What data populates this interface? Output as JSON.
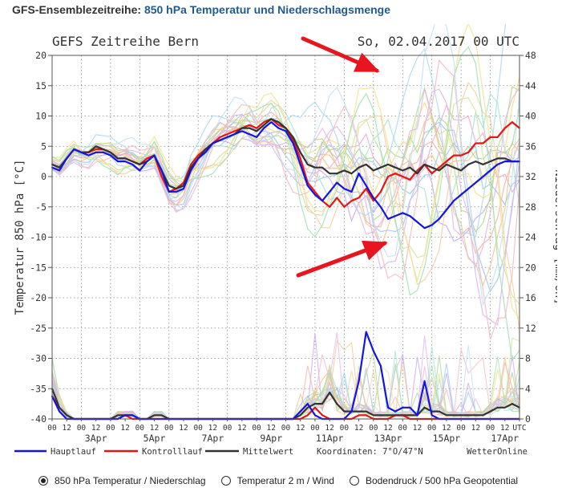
{
  "header": {
    "title_bold": "GFS-Ensemblezeitreihe:",
    "title_sub": "850 hPa Temperatur und Niederschlagsmenge"
  },
  "chart_meta": {
    "title_left": "GEFS Zeitreihe Bern",
    "title_right": "So, 02.04.2017  00 UTC",
    "hour_labels": [
      "00",
      "12",
      "00",
      "12",
      "00",
      "12",
      "00",
      "12",
      "00",
      "12",
      "00",
      "12",
      "00",
      "12",
      "00",
      "12",
      "00",
      "12",
      "00",
      "12",
      "00",
      "12",
      "00",
      "12",
      "00",
      "12",
      "00",
      "12",
      "00",
      "12",
      "00",
      "12"
    ],
    "last_hour_label": "UTC",
    "date_labels": [
      "3Apr",
      "5Apr",
      "7Apr",
      "9Apr",
      "11Apr",
      "13Apr",
      "15Apr",
      "17Apr"
    ],
    "legend": {
      "hauptlauf": "Hauptlauf",
      "kontrolllauf": "Kontrolllauf",
      "mittelwert": "Mittelwert",
      "coordinates": "Koordinaten: 7°O/47°N",
      "brand": "WetterOnline"
    },
    "colors": {
      "hauptlauf": "#1515e0",
      "kontrolllauf": "#e81515",
      "mittelwert": "#333333",
      "arrow": "#e8141e",
      "grid": "#888888"
    }
  },
  "chart_data": {
    "type": "line",
    "title": "GEFS Zeitreihe Bern",
    "x_unit": "hours since 02.04.2017 00 UTC (6-hourly)",
    "x": [
      0,
      6,
      12,
      18,
      24,
      30,
      36,
      42,
      48,
      54,
      60,
      66,
      72,
      78,
      84,
      90,
      96,
      102,
      108,
      114,
      120,
      126,
      132,
      138,
      144,
      150,
      156,
      162,
      168,
      174,
      180,
      186,
      192,
      198,
      204,
      210,
      216,
      222,
      228,
      234,
      240,
      246,
      252,
      258,
      264,
      270,
      276,
      282,
      288,
      294,
      300,
      306,
      312,
      318,
      324,
      330,
      336,
      342,
      348,
      354,
      360,
      366,
      372,
      378,
      384
    ],
    "y_left": {
      "label": "Temperatur 850 hPa [°C]",
      "ylim": [
        -40,
        20
      ],
      "ticks": [
        20,
        15,
        10,
        5,
        0,
        -5,
        -10,
        -15,
        -20,
        -25,
        -30,
        -35,
        -40
      ]
    },
    "y_right": {
      "label": "Niederschlag [mm/6h]",
      "ylim": [
        0,
        48
      ],
      "ticks": [
        48,
        44,
        40,
        36,
        32,
        28,
        24,
        20,
        16,
        12,
        8,
        4,
        0
      ]
    },
    "series": [
      {
        "name": "Hauptlauf",
        "role": "temperature",
        "values": [
          1.5,
          1.0,
          3.0,
          4.5,
          4.0,
          3.5,
          4.0,
          4.0,
          3.5,
          2.5,
          2.5,
          2.0,
          1.0,
          2.5,
          3.5,
          1.0,
          -2.5,
          -2.5,
          -2.0,
          1.0,
          3.0,
          4.0,
          5.5,
          6.0,
          6.5,
          7.0,
          7.5,
          7.0,
          6.5,
          8.0,
          9.0,
          8.0,
          7.5,
          5.5,
          2.0,
          -1.5,
          -3.0,
          -4.0,
          -2.5,
          -1.0,
          -2.0,
          -2.5,
          0.5,
          -1.5,
          -3.5,
          -5.0,
          -7.0,
          -6.5,
          -6.0,
          -6.5,
          -7.5,
          -8.5,
          -8.0,
          -7.0,
          -5.5,
          -4.0,
          -3.0,
          -2.0,
          -1.0,
          0.0,
          1.0,
          2.0,
          2.5,
          2.5,
          2.5
        ]
      },
      {
        "name": "Kontrolllauf",
        "role": "temperature",
        "values": [
          2.0,
          1.5,
          3.0,
          4.5,
          4.0,
          4.0,
          4.5,
          4.5,
          4.0,
          3.0,
          3.0,
          2.5,
          2.0,
          3.0,
          3.5,
          0.0,
          -2.5,
          -2.0,
          -1.0,
          2.0,
          3.5,
          4.5,
          5.5,
          6.5,
          7.0,
          7.5,
          8.0,
          8.5,
          8.0,
          9.0,
          9.5,
          8.5,
          8.0,
          6.0,
          3.0,
          -1.0,
          -2.5,
          -4.0,
          -5.0,
          -3.5,
          -5.0,
          -4.0,
          -3.5,
          -2.0,
          -4.0,
          -2.5,
          0.0,
          0.5,
          0.0,
          -0.5,
          1.0,
          2.0,
          0.5,
          1.5,
          2.5,
          3.5,
          3.5,
          4.0,
          5.5,
          5.5,
          6.5,
          6.5,
          8.0,
          9.0,
          8.0
        ]
      },
      {
        "name": "Mittelwert",
        "role": "temperature",
        "values": [
          2.0,
          1.5,
          3.0,
          4.5,
          4.0,
          4.0,
          5.0,
          4.5,
          4.0,
          3.0,
          3.0,
          2.5,
          2.0,
          2.5,
          3.5,
          1.0,
          -1.5,
          -2.0,
          -1.5,
          1.5,
          3.0,
          4.5,
          5.5,
          6.0,
          6.5,
          7.0,
          8.0,
          8.0,
          7.5,
          8.5,
          9.5,
          9.0,
          8.0,
          6.5,
          4.0,
          2.0,
          1.5,
          1.5,
          0.5,
          0.5,
          1.0,
          0.5,
          1.5,
          2.0,
          1.0,
          1.5,
          2.0,
          1.5,
          1.0,
          1.5,
          0.5,
          2.0,
          1.5,
          1.0,
          2.0,
          1.5,
          1.0,
          2.0,
          2.5,
          2.0,
          2.5,
          3.0,
          3.0,
          2.5,
          2.5
        ]
      },
      {
        "name": "Hauptlauf Niederschlag",
        "role": "precipitation",
        "values": [
          3.0,
          1.0,
          0.0,
          0.0,
          0.0,
          0.0,
          0.0,
          0.0,
          0.0,
          0.0,
          0.5,
          0.5,
          0.0,
          0.0,
          0.0,
          0.0,
          0.0,
          0.0,
          0.0,
          0.0,
          0.0,
          0.0,
          0.0,
          0.0,
          0.0,
          0.0,
          0.0,
          0.0,
          0.0,
          0.0,
          0.0,
          0.0,
          0.0,
          0.0,
          1.0,
          2.0,
          0.5,
          0.0,
          0.0,
          0.0,
          0.0,
          1.0,
          5.0,
          11.5,
          9.0,
          7.0,
          1.5,
          1.0,
          1.5,
          1.5,
          0.5,
          5.0,
          0.5,
          0.0,
          0.0,
          0.0,
          0.0,
          0.0,
          0.0,
          0.0,
          0.0,
          0.0,
          0.0,
          0.0,
          0.0
        ]
      },
      {
        "name": "Kontrolllauf Niederschlag",
        "role": "precipitation",
        "values": [
          3.0,
          1.5,
          0.5,
          0.0,
          0.0,
          0.0,
          0.0,
          0.0,
          0.0,
          0.0,
          0.5,
          0.0,
          0.0,
          0.0,
          0.0,
          0.0,
          0.0,
          0.0,
          0.0,
          0.0,
          0.0,
          0.0,
          0.0,
          0.0,
          0.0,
          0.0,
          0.0,
          0.0,
          0.0,
          0.0,
          0.0,
          0.0,
          0.0,
          0.0,
          0.0,
          0.5,
          1.5,
          0.5,
          0.0,
          0.0,
          0.0,
          0.0,
          0.5,
          0.5,
          0.0,
          0.0,
          0.0,
          0.5,
          0.5,
          0.0,
          0.0,
          0.0,
          0.0,
          0.0,
          0.0,
          0.0,
          0.0,
          0.0,
          0.0,
          0.0,
          0.0,
          0.0,
          0.0,
          0.0,
          0.0
        ]
      },
      {
        "name": "Mittelwert Niederschlag",
        "role": "precipitation",
        "values": [
          4.0,
          1.5,
          0.5,
          0.0,
          0.0,
          0.0,
          0.0,
          0.0,
          0.0,
          0.5,
          0.5,
          0.5,
          0.0,
          0.0,
          0.5,
          0.5,
          0.0,
          0.0,
          0.0,
          0.0,
          0.0,
          0.0,
          0.0,
          0.0,
          0.0,
          0.0,
          0.0,
          0.0,
          0.0,
          0.0,
          0.0,
          0.0,
          0.0,
          0.0,
          0.5,
          1.5,
          2.0,
          2.0,
          3.5,
          2.0,
          1.0,
          1.0,
          1.0,
          1.0,
          0.5,
          0.5,
          0.5,
          0.5,
          0.5,
          0.5,
          0.5,
          1.5,
          1.0,
          1.0,
          0.5,
          0.5,
          0.5,
          0.5,
          0.5,
          0.5,
          1.0,
          1.5,
          1.5,
          2.0,
          1.5
        ]
      }
    ],
    "legend_position": "bottom"
  },
  "options": [
    {
      "label": "850 hPa Temperatur / Niederschlag",
      "checked": true
    },
    {
      "label": "Temperatur 2 m / Wind",
      "checked": false
    },
    {
      "label": "Bodendruck / 500 hPa Geopotential",
      "checked": false
    }
  ]
}
